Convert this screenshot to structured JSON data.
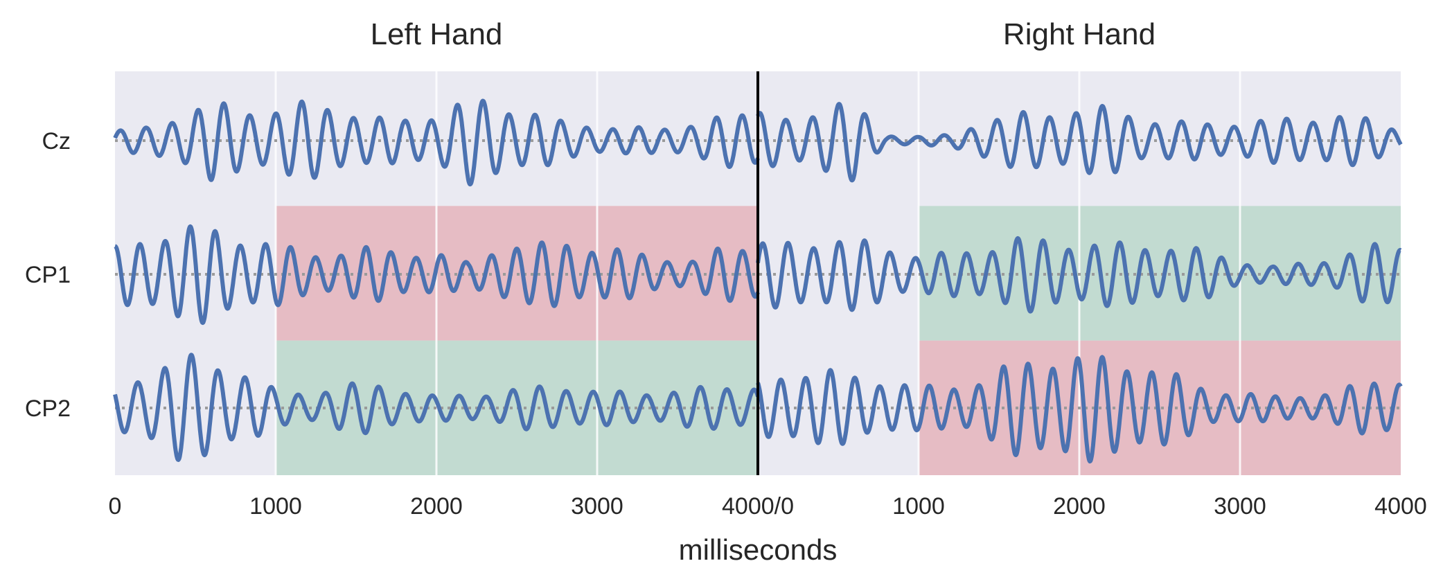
{
  "chart_data": {
    "type": "line",
    "xlabel": "milliseconds",
    "channels": [
      "Cz",
      "CP1",
      "CP2"
    ],
    "panels": [
      {
        "title": "Left Hand",
        "xlim": [
          0,
          4000
        ],
        "tick_labels": [
          "0",
          "1000",
          "2000",
          "3000",
          "4000/0"
        ],
        "highlights": [
          {
            "channel": "CP1",
            "x_range": [
              1000,
              4000
            ],
            "color": "#e6bcc4",
            "meaning": "decrease"
          },
          {
            "channel": "CP2",
            "x_range": [
              1000,
              4000
            ],
            "color": "#c2dbd1",
            "meaning": "increase"
          }
        ],
        "series": [
          {
            "channel": "Cz",
            "envelope_ms": [
              0,
              200,
              400,
              600,
              800,
              1000,
              1200,
              1400,
              1600,
              1800,
              2000,
              2200,
              2400,
              2600,
              2800,
              3000,
              3200,
              3400,
              3600,
              3800,
              4000
            ],
            "envelope": [
              0.25,
              0.35,
              0.7,
              1.0,
              0.85,
              0.85,
              1.0,
              0.9,
              0.6,
              0.55,
              0.75,
              1.1,
              0.95,
              0.8,
              0.45,
              0.4,
              0.35,
              0.3,
              0.5,
              0.65,
              0.7
            ]
          },
          {
            "channel": "CP1",
            "envelope_ms": [
              0,
              200,
              400,
              600,
              800,
              1000,
              1200,
              1400,
              1600,
              1800,
              2000,
              2200,
              2400,
              2600,
              2800,
              3000,
              3200,
              3400,
              3600,
              3800,
              4000
            ],
            "envelope": [
              0.7,
              1.0,
              1.25,
              1.2,
              1.0,
              0.8,
              0.55,
              0.6,
              0.7,
              0.6,
              0.55,
              0.3,
              0.8,
              0.75,
              0.9,
              0.7,
              0.6,
              0.45,
              0.35,
              0.75,
              0.8
            ]
          },
          {
            "channel": "CP2",
            "envelope_ms": [
              0,
              200,
              400,
              600,
              800,
              1000,
              1200,
              1400,
              1600,
              1800,
              2000,
              2200,
              2400,
              2600,
              2800,
              3000,
              3200,
              3400,
              3600,
              3800,
              4000
            ],
            "envelope": [
              0.6,
              1.0,
              1.35,
              1.3,
              1.0,
              0.45,
              0.4,
              0.6,
              0.65,
              0.5,
              0.3,
              0.35,
              0.45,
              0.55,
              0.6,
              0.45,
              0.4,
              0.45,
              0.5,
              0.6,
              0.6
            ]
          }
        ]
      },
      {
        "title": "Right Hand",
        "xlim": [
          0,
          4000
        ],
        "tick_labels": [
          "1000",
          "2000",
          "3000",
          "4000"
        ],
        "highlights": [
          {
            "channel": "CP1",
            "x_range": [
              1000,
              4000
            ],
            "color": "#c2dbd1",
            "meaning": "increase"
          },
          {
            "channel": "CP2",
            "x_range": [
              1000,
              4000
            ],
            "color": "#e6bcc4",
            "meaning": "decrease"
          }
        ],
        "series": [
          {
            "channel": "Cz",
            "envelope_ms": [
              0,
              200,
              400,
              600,
              800,
              1000,
              1200,
              1400,
              1600,
              1800,
              2000,
              2200,
              2400,
              2600,
              2800,
              3000,
              3200,
              3400,
              3600,
              3800,
              4000
            ],
            "envelope": [
              0.7,
              0.6,
              0.9,
              1.0,
              0.15,
              0.1,
              0.15,
              0.55,
              0.7,
              0.75,
              0.9,
              0.85,
              0.6,
              0.5,
              0.45,
              0.5,
              0.55,
              0.6,
              0.7,
              0.55,
              0.3
            ]
          },
          {
            "channel": "CP1",
            "envelope_ms": [
              0,
              200,
              400,
              600,
              800,
              1000,
              1200,
              1400,
              1600,
              1800,
              2000,
              2200,
              2400,
              2600,
              2800,
              3000,
              3200,
              3400,
              3600,
              3800,
              4000
            ],
            "envelope": [
              0.8,
              0.85,
              0.95,
              0.9,
              0.75,
              0.5,
              0.55,
              0.7,
              0.95,
              0.9,
              0.85,
              0.8,
              0.8,
              0.75,
              0.6,
              0.35,
              0.2,
              0.3,
              0.45,
              0.75,
              0.8
            ]
          },
          {
            "channel": "CP2",
            "envelope_ms": [
              0,
              200,
              400,
              600,
              800,
              1000,
              1200,
              1400,
              1600,
              1800,
              2000,
              2200,
              2400,
              2600,
              2800,
              3000,
              3200,
              3400,
              3600,
              3800,
              4000
            ],
            "envelope": [
              0.7,
              1.0,
              1.0,
              0.85,
              0.75,
              0.55,
              0.6,
              0.75,
              1.2,
              1.4,
              1.35,
              1.3,
              1.2,
              0.85,
              0.5,
              0.4,
              0.3,
              0.35,
              0.4,
              0.75,
              0.8
            ]
          }
        ]
      }
    ],
    "colors": {
      "signal": "#4c72b0",
      "baseline": "#9a9a9a",
      "background": "#eaeaf2",
      "grid": "#ffffff",
      "divider": "#000000",
      "decrease": "#e6bcc4",
      "increase": "#c2dbd1"
    }
  }
}
